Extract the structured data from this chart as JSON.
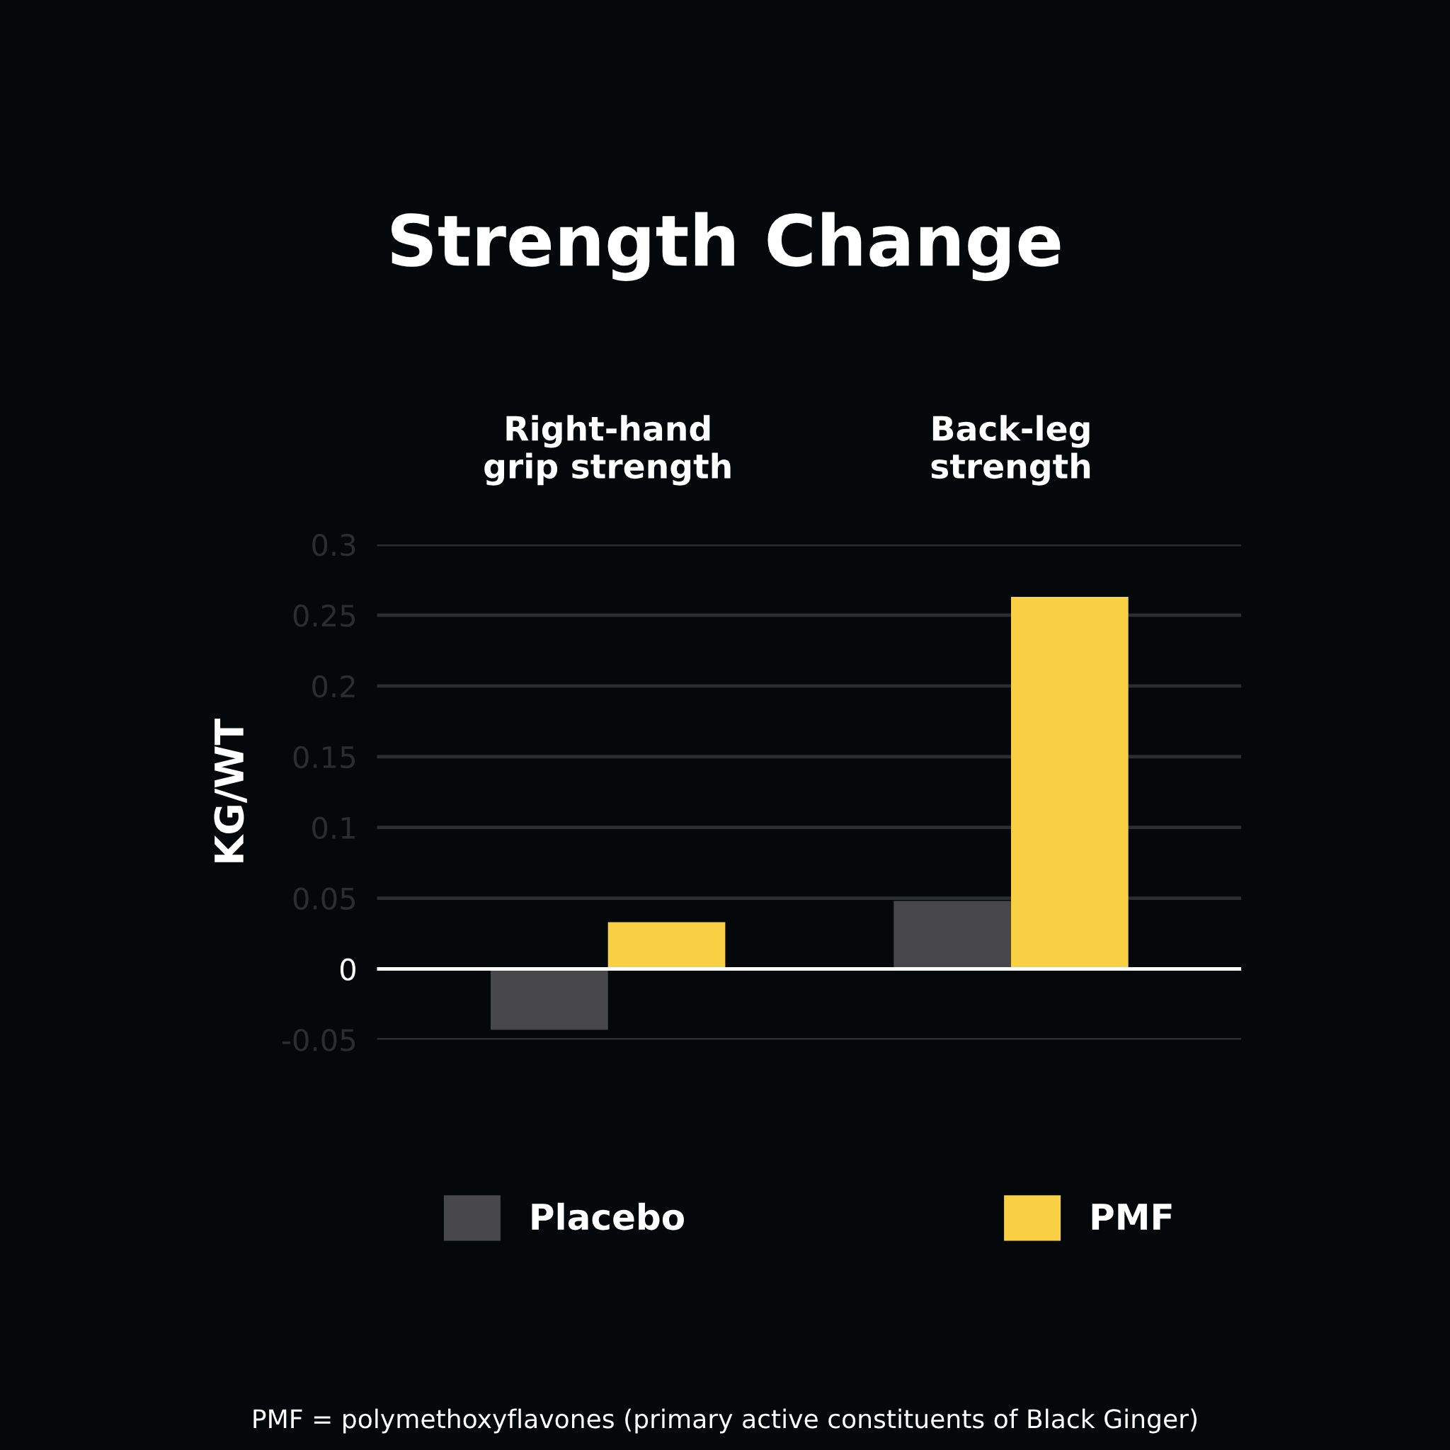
{
  "chart_data": {
    "type": "bar",
    "title": "Strength Change",
    "ylabel": "KG/WT",
    "categories": [
      "Right-hand\ngrip strength",
      "Back-leg\nstrength"
    ],
    "series": [
      {
        "name": "Placebo",
        "color": "#48484a",
        "values": [
          -0.043,
          0.048
        ]
      },
      {
        "name": "PMF",
        "color": "#f9d044",
        "values": [
          0.033,
          0.263
        ]
      }
    ],
    "ylim": [
      -0.05,
      0.3
    ],
    "yticks": [
      -0.05,
      0,
      0.05,
      0.1,
      0.15,
      0.2,
      0.25,
      0.3
    ],
    "ref_lines": [
      {
        "axis": "y",
        "value": 0,
        "color": "#ffffff"
      }
    ],
    "grid": "y",
    "legend": "bottom",
    "annotations": [
      "PMF = polymethoxyflavones (primary active constituents of Black Ginger)"
    ]
  }
}
